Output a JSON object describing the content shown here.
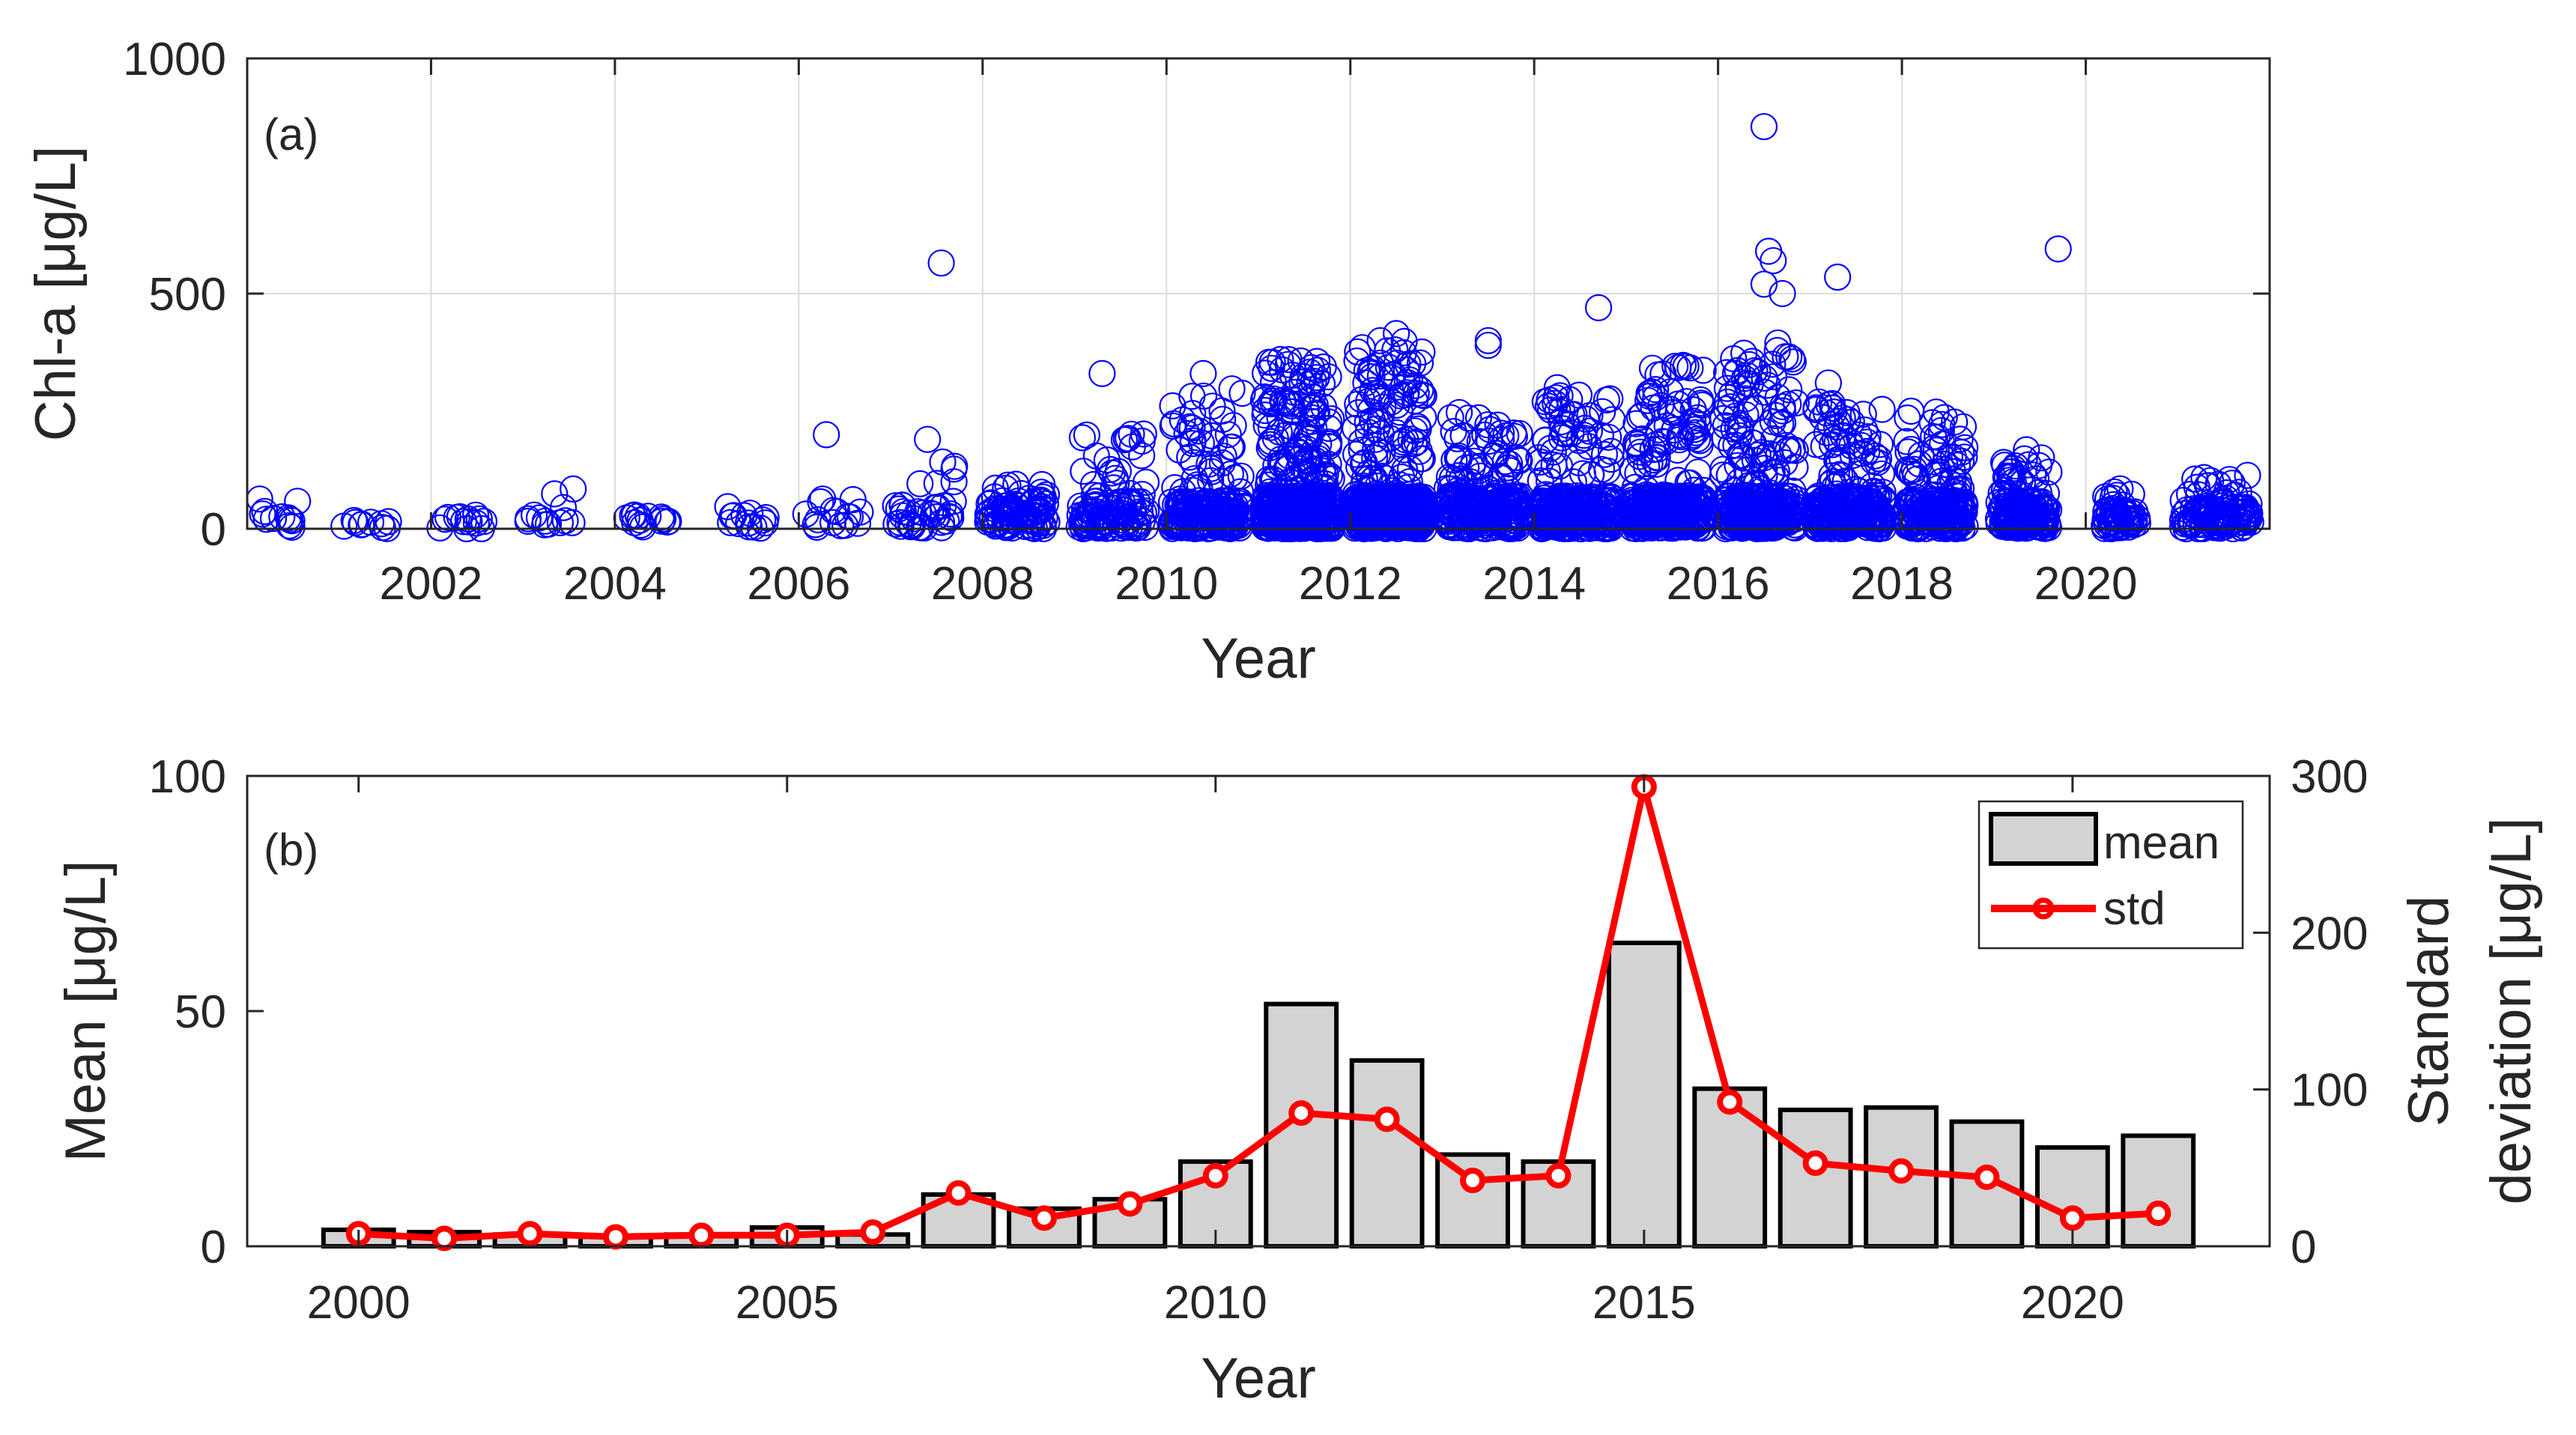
{
  "chart_data": [
    {
      "type": "scatter",
      "panel_label": "(a)",
      "xlabel": "Year",
      "ylabel": "Chl-a  [μg/L]",
      "xlim": [
        2000,
        2022
      ],
      "ylim": [
        0,
        1000
      ],
      "x_ticks": [
        2002,
        2004,
        2006,
        2008,
        2010,
        2012,
        2014,
        2016,
        2018,
        2020
      ],
      "y_ticks": [
        0,
        500,
        1000
      ],
      "grid": true,
      "marker_color": "#0000ff",
      "year_groups": [
        {
          "year": 2000,
          "start": 0.05,
          "end": 0.55,
          "n": 12,
          "base_max": 40,
          "spread": [
            0,
            110
          ]
        },
        {
          "year": 2001,
          "start": 0.05,
          "end": 0.55,
          "n": 10,
          "base_max": 20,
          "spread": [
            0,
            85
          ]
        },
        {
          "year": 2002,
          "start": 0.05,
          "end": 0.6,
          "n": 14,
          "base_max": 30,
          "spread": [
            0,
            90
          ]
        },
        {
          "year": 2003,
          "start": 0.05,
          "end": 0.65,
          "n": 13,
          "base_max": 30,
          "spread": [
            0,
            85
          ]
        },
        {
          "year": 2004,
          "start": 0.05,
          "end": 0.7,
          "n": 14,
          "base_max": 30,
          "spread": [
            0,
            85
          ]
        },
        {
          "year": 2005,
          "start": 0.05,
          "end": 0.65,
          "n": 14,
          "base_max": 30,
          "spread": [
            0,
            80
          ]
        },
        {
          "year": 2006,
          "start": 0.05,
          "end": 0.7,
          "n": 16,
          "base_max": 40,
          "spread": [
            0,
            95
          ]
        },
        {
          "year": 2007,
          "start": 0.05,
          "end": 0.7,
          "n": 40,
          "base_max": 50,
          "spread": [
            0,
            190
          ]
        },
        {
          "year": 2008,
          "start": 0.05,
          "end": 0.7,
          "n": 90,
          "base_max": 60,
          "spread": [
            0,
            100
          ]
        },
        {
          "year": 2009,
          "start": 0.05,
          "end": 0.8,
          "n": 110,
          "base_max": 60,
          "spread": [
            0,
            230
          ]
        },
        {
          "year": 2010,
          "start": 0.05,
          "end": 0.85,
          "n": 200,
          "base_max": 60,
          "spread": [
            0,
            300
          ]
        },
        {
          "year": 2011,
          "start": 0.05,
          "end": 0.8,
          "n": 480,
          "base_max": 70,
          "spread": [
            0,
            360
          ]
        },
        {
          "year": 2012,
          "start": 0.05,
          "end": 0.8,
          "n": 480,
          "base_max": 70,
          "spread": [
            0,
            400
          ]
        },
        {
          "year": 2013,
          "start": 0.05,
          "end": 0.85,
          "n": 260,
          "base_max": 70,
          "spread": [
            0,
            250
          ]
        },
        {
          "year": 2014,
          "start": 0.05,
          "end": 0.85,
          "n": 280,
          "base_max": 70,
          "spread": [
            0,
            290
          ]
        },
        {
          "year": 2015,
          "start": 0.05,
          "end": 0.85,
          "n": 340,
          "base_max": 70,
          "spread": [
            0,
            350
          ]
        },
        {
          "year": 2016,
          "start": 0.05,
          "end": 0.85,
          "n": 330,
          "base_max": 70,
          "spread": [
            0,
            380
          ]
        },
        {
          "year": 2017,
          "start": 0.05,
          "end": 0.8,
          "n": 260,
          "base_max": 70,
          "spread": [
            0,
            270
          ]
        },
        {
          "year": 2018,
          "start": 0.05,
          "end": 0.7,
          "n": 210,
          "base_max": 60,
          "spread": [
            0,
            250
          ]
        },
        {
          "year": 2019,
          "start": 0.05,
          "end": 0.6,
          "n": 170,
          "base_max": 60,
          "spread": [
            0,
            170
          ]
        },
        {
          "year": 2020,
          "start": 0.2,
          "end": 0.6,
          "n": 60,
          "base_max": 40,
          "spread": [
            0,
            95
          ]
        },
        {
          "year": 2021,
          "start": 0.05,
          "end": 0.8,
          "n": 120,
          "base_max": 45,
          "spread": [
            0,
            115
          ]
        }
      ],
      "outliers": [
        {
          "x": 2007.55,
          "y": 565
        },
        {
          "x": 2006.3,
          "y": 200
        },
        {
          "x": 2007.4,
          "y": 190
        },
        {
          "x": 2009.3,
          "y": 330
        },
        {
          "x": 2010.4,
          "y": 330
        },
        {
          "x": 2012.5,
          "y": 415
        },
        {
          "x": 2013.5,
          "y": 400
        },
        {
          "x": 2013.5,
          "y": 390
        },
        {
          "x": 2014.25,
          "y": 300
        },
        {
          "x": 2014.7,
          "y": 470
        },
        {
          "x": 2015.65,
          "y": 345
        },
        {
          "x": 2016.5,
          "y": 855
        },
        {
          "x": 2016.55,
          "y": 590
        },
        {
          "x": 2016.6,
          "y": 570
        },
        {
          "x": 2016.5,
          "y": 520
        },
        {
          "x": 2016.7,
          "y": 500
        },
        {
          "x": 2016.65,
          "y": 395
        },
        {
          "x": 2017.2,
          "y": 310
        },
        {
          "x": 2017.3,
          "y": 535
        },
        {
          "x": 2018.1,
          "y": 250
        },
        {
          "x": 2019.7,
          "y": 595
        }
      ]
    },
    {
      "type": "bar+line",
      "panel_label": "(b)",
      "xlabel": "Year",
      "ylabel_left": "Mean  [μg/L]",
      "ylabel_right_line1": "Standard",
      "ylabel_right_line2": "deviation  [μg/L]",
      "xlim": [
        1998.7,
        2022.3
      ],
      "ylim_left": [
        0,
        100
      ],
      "ylim_right": [
        0,
        300
      ],
      "x_ticks": [
        2000,
        2005,
        2010,
        2015,
        2020
      ],
      "y_ticks_left": [
        0,
        50,
        100
      ],
      "y_ticks_right": [
        0,
        100,
        200,
        300
      ],
      "grid": false,
      "categories": [
        2000,
        2001,
        2002,
        2003,
        2004,
        2005,
        2006,
        2007,
        2008,
        2009,
        2010,
        2011,
        2012,
        2013,
        2014,
        2015,
        2016,
        2017,
        2018,
        2019,
        2020,
        2021
      ],
      "series": [
        {
          "name": "mean",
          "axis": "left",
          "color": "#d3d3d3",
          "values": [
            3.5,
            3,
            2.5,
            2,
            2.5,
            4,
            2.5,
            11,
            8,
            10,
            18,
            51.5,
            39.5,
            19.5,
            18,
            64.5,
            33.5,
            29,
            29.5,
            26.5,
            21,
            23.5
          ]
        },
        {
          "name": "std",
          "axis": "right",
          "color": "#ff0000",
          "values": [
            8,
            5,
            8,
            6,
            7,
            7,
            9,
            34,
            18,
            27,
            45,
            85,
            81,
            42,
            45,
            293,
            92,
            53,
            48,
            44,
            18,
            21
          ]
        }
      ],
      "legend": {
        "position": "top-right",
        "entries": [
          "mean",
          "std"
        ]
      }
    }
  ]
}
